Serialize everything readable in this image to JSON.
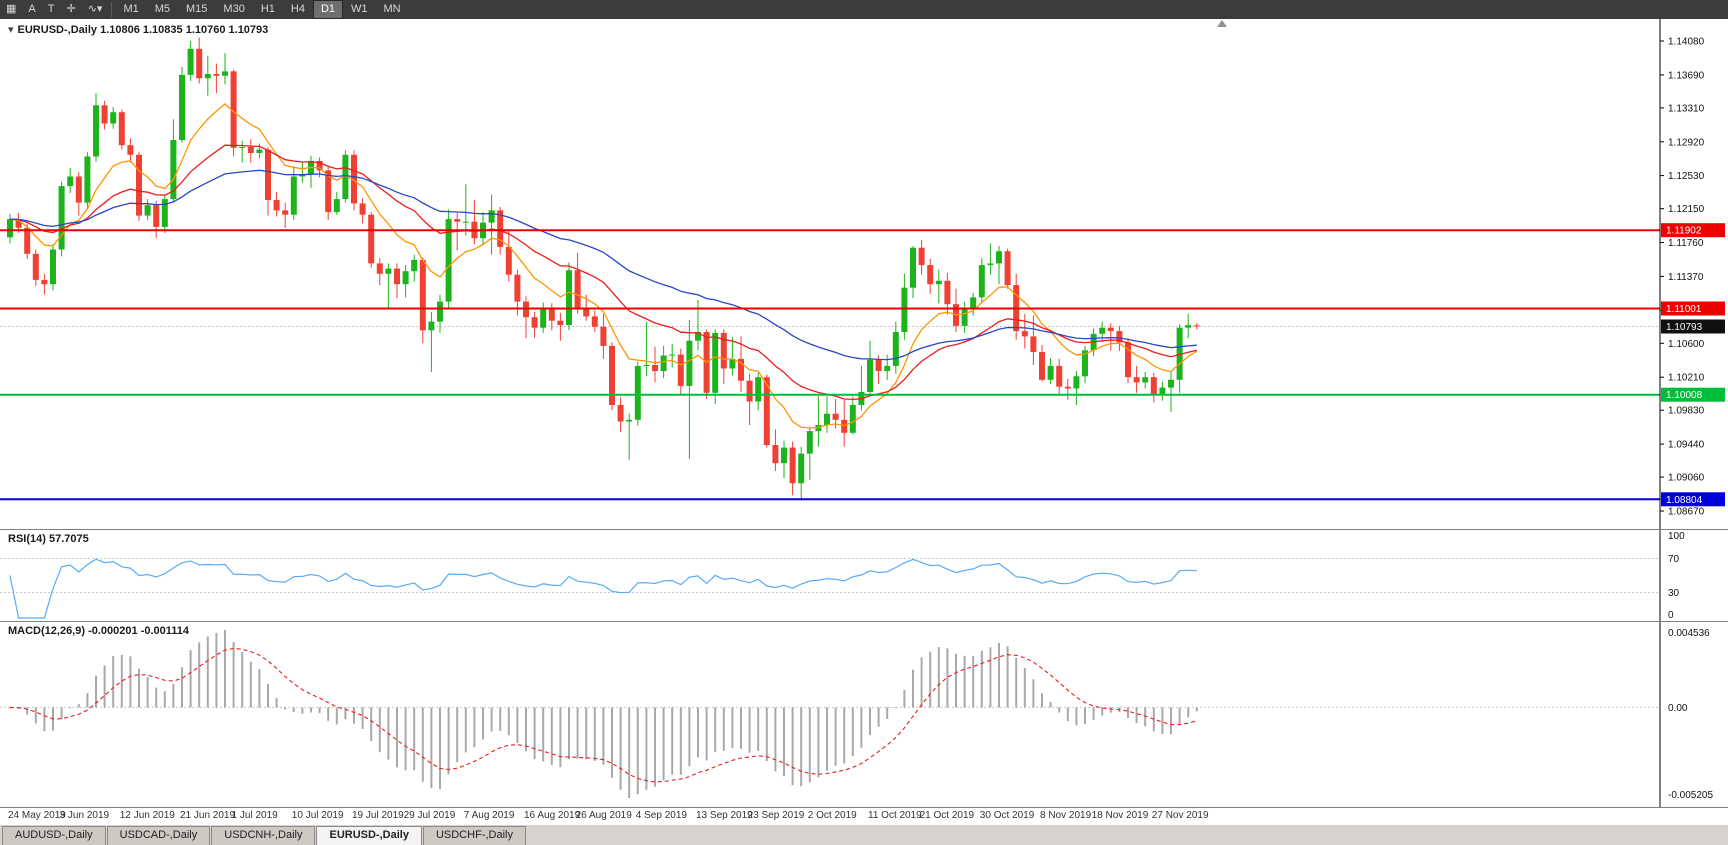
{
  "toolbar": {
    "tools": [
      {
        "glyph": "▦"
      },
      {
        "glyph": "A"
      },
      {
        "glyph": "T"
      },
      {
        "glyph": "✛"
      },
      {
        "glyph": "∿▾"
      }
    ],
    "timeframes": [
      {
        "label": "M1"
      },
      {
        "label": "M5"
      },
      {
        "label": "M15"
      },
      {
        "label": "M30"
      },
      {
        "label": "H1"
      },
      {
        "label": "H4"
      },
      {
        "label": "D1",
        "active": true
      },
      {
        "label": "W1"
      },
      {
        "label": "MN"
      }
    ]
  },
  "chart": {
    "arrow_glyph": "▾",
    "symbol_label": "EURUSD-,Daily",
    "ohlc_label": "1.10806 1.10835 1.10760 1.10793"
  },
  "chart_data": {
    "type": "candlestick",
    "symbol": "EURUSD",
    "timeframe": "Daily",
    "candles": [
      [
        1.1182,
        1.1209,
        1.1175,
        1.1203
      ],
      [
        1.1203,
        1.121,
        1.1187,
        1.1193
      ],
      [
        1.1193,
        1.1197,
        1.1157,
        1.1163
      ],
      [
        1.1163,
        1.1168,
        1.1126,
        1.1133
      ],
      [
        1.1133,
        1.114,
        1.1116,
        1.1128
      ],
      [
        1.1128,
        1.1174,
        1.1121,
        1.1168
      ],
      [
        1.1168,
        1.1246,
        1.116,
        1.1241
      ],
      [
        1.1241,
        1.1262,
        1.1233,
        1.1252
      ],
      [
        1.1252,
        1.1257,
        1.1207,
        1.1222
      ],
      [
        1.1222,
        1.128,
        1.1215,
        1.1275
      ],
      [
        1.1275,
        1.1348,
        1.1269,
        1.1334
      ],
      [
        1.1334,
        1.1339,
        1.1306,
        1.1313
      ],
      [
        1.1313,
        1.1332,
        1.1307,
        1.1326
      ],
      [
        1.1326,
        1.1329,
        1.1283,
        1.1288
      ],
      [
        1.1288,
        1.1296,
        1.1268,
        1.1277
      ],
      [
        1.1277,
        1.128,
        1.1201,
        1.1207
      ],
      [
        1.1207,
        1.1226,
        1.1202,
        1.1219
      ],
      [
        1.1219,
        1.1224,
        1.1181,
        1.1194
      ],
      [
        1.1194,
        1.1231,
        1.1187,
        1.1226
      ],
      [
        1.1226,
        1.1318,
        1.1223,
        1.1294
      ],
      [
        1.1294,
        1.1378,
        1.1291,
        1.1369
      ],
      [
        1.1369,
        1.1408,
        1.1362,
        1.1399
      ],
      [
        1.1399,
        1.1412,
        1.1359,
        1.1365
      ],
      [
        1.1365,
        1.1391,
        1.1345,
        1.137
      ],
      [
        1.137,
        1.1382,
        1.1348,
        1.1368
      ],
      [
        1.1368,
        1.1394,
        1.1358,
        1.1373
      ],
      [
        1.1373,
        1.1375,
        1.1275,
        1.1285
      ],
      [
        1.1285,
        1.1293,
        1.1268,
        1.1286
      ],
      [
        1.1286,
        1.1295,
        1.1268,
        1.1279
      ],
      [
        1.1279,
        1.129,
        1.1273,
        1.1283
      ],
      [
        1.1283,
        1.1286,
        1.1207,
        1.1225
      ],
      [
        1.1225,
        1.1234,
        1.1206,
        1.1213
      ],
      [
        1.1213,
        1.1222,
        1.1193,
        1.1208
      ],
      [
        1.1208,
        1.1264,
        1.1202,
        1.1252
      ],
      [
        1.1252,
        1.1268,
        1.1245,
        1.1254
      ],
      [
        1.1254,
        1.1276,
        1.1239,
        1.127
      ],
      [
        1.127,
        1.1274,
        1.1251,
        1.1259
      ],
      [
        1.1259,
        1.1263,
        1.1202,
        1.1211
      ],
      [
        1.1211,
        1.1234,
        1.1208,
        1.1226
      ],
      [
        1.1226,
        1.1282,
        1.1222,
        1.1277
      ],
      [
        1.1277,
        1.1282,
        1.1213,
        1.1221
      ],
      [
        1.1221,
        1.1227,
        1.1198,
        1.1208
      ],
      [
        1.1208,
        1.1211,
        1.1147,
        1.1152
      ],
      [
        1.1152,
        1.1158,
        1.1127,
        1.114
      ],
      [
        1.114,
        1.1152,
        1.1101,
        1.1146
      ],
      [
        1.1146,
        1.1152,
        1.1112,
        1.1128
      ],
      [
        1.1128,
        1.115,
        1.1113,
        1.1143
      ],
      [
        1.1143,
        1.1162,
        1.1131,
        1.1156
      ],
      [
        1.1156,
        1.1159,
        1.106,
        1.1075
      ],
      [
        1.1075,
        1.1096,
        1.1027,
        1.1085
      ],
      [
        1.1085,
        1.1116,
        1.1072,
        1.1108
      ],
      [
        1.1108,
        1.1214,
        1.1101,
        1.1203
      ],
      [
        1.1203,
        1.121,
        1.1167,
        1.12
      ],
      [
        1.12,
        1.1243,
        1.1184,
        1.12
      ],
      [
        1.12,
        1.1225,
        1.1174,
        1.1181
      ],
      [
        1.1181,
        1.1211,
        1.1173,
        1.1199
      ],
      [
        1.1199,
        1.1231,
        1.1162,
        1.1213
      ],
      [
        1.1213,
        1.1217,
        1.1162,
        1.1171
      ],
      [
        1.1171,
        1.1189,
        1.1131,
        1.1139
      ],
      [
        1.1139,
        1.1145,
        1.1092,
        1.1108
      ],
      [
        1.1108,
        1.1114,
        1.1066,
        1.109
      ],
      [
        1.109,
        1.1096,
        1.1066,
        1.1078
      ],
      [
        1.1078,
        1.1107,
        1.1072,
        1.1099
      ],
      [
        1.1099,
        1.1106,
        1.1075,
        1.1086
      ],
      [
        1.1086,
        1.1095,
        1.1063,
        1.1081
      ],
      [
        1.1081,
        1.1153,
        1.1075,
        1.1144
      ],
      [
        1.1144,
        1.1164,
        1.1094,
        1.1101
      ],
      [
        1.1101,
        1.1116,
        1.1086,
        1.1091
      ],
      [
        1.1091,
        1.1098,
        1.1073,
        1.1079
      ],
      [
        1.1079,
        1.1094,
        1.1042,
        1.1057
      ],
      [
        1.1057,
        1.1061,
        1.0983,
        1.0989
      ],
      [
        1.0989,
        1.0998,
        1.0958,
        1.097
      ],
      [
        1.097,
        1.0979,
        1.0926,
        1.0972
      ],
      [
        1.0972,
        1.1039,
        1.0965,
        1.1034
      ],
      [
        1.1034,
        1.1085,
        1.1022,
        1.1035
      ],
      [
        1.1035,
        1.1056,
        1.1015,
        1.1028
      ],
      [
        1.1028,
        1.1057,
        1.102,
        1.1046
      ],
      [
        1.1046,
        1.1059,
        1.1032,
        1.1047
      ],
      [
        1.1047,
        1.1054,
        1.1001,
        1.1011
      ],
      [
        1.1011,
        1.1087,
        1.0927,
        1.1063
      ],
      [
        1.1063,
        1.111,
        1.1052,
        1.1073
      ],
      [
        1.1073,
        1.1076,
        1.0996,
        1.1003
      ],
      [
        1.1003,
        1.1076,
        1.099,
        1.1072
      ],
      [
        1.1072,
        1.1076,
        1.1013,
        1.1031
      ],
      [
        1.1031,
        1.1067,
        1.1023,
        1.1042
      ],
      [
        1.1042,
        1.1068,
        1.1004,
        1.1017
      ],
      [
        1.1017,
        1.1025,
        1.0966,
        1.0993
      ],
      [
        1.0993,
        1.1026,
        1.0983,
        1.1021
      ],
      [
        1.1021,
        1.1024,
        1.094,
        1.0943
      ],
      [
        1.0943,
        1.0961,
        1.0913,
        1.0922
      ],
      [
        1.0922,
        1.0948,
        1.0905,
        1.094
      ],
      [
        1.094,
        1.0947,
        1.0885,
        1.0899
      ],
      [
        1.0899,
        1.0941,
        1.0879,
        1.0933
      ],
      [
        1.0933,
        1.0964,
        1.0903,
        1.0959
      ],
      [
        1.0959,
        1.0999,
        1.0941,
        1.0966
      ],
      [
        1.0966,
        1.0999,
        1.0957,
        1.0979
      ],
      [
        1.0979,
        1.0996,
        1.0962,
        1.0972
      ],
      [
        1.0972,
        1.0995,
        1.0941,
        1.0957
      ],
      [
        1.0957,
        1.0999,
        1.0955,
        1.0989
      ],
      [
        1.0989,
        1.1034,
        1.0983,
        1.1004
      ],
      [
        1.1004,
        1.1063,
        1.1002,
        1.1041
      ],
      [
        1.1041,
        1.1046,
        1.1013,
        1.1028
      ],
      [
        1.1028,
        1.1047,
        1.1018,
        1.1034
      ],
      [
        1.1034,
        1.1085,
        1.1025,
        1.1073
      ],
      [
        1.1073,
        1.114,
        1.1064,
        1.1124
      ],
      [
        1.1124,
        1.1172,
        1.1112,
        1.117
      ],
      [
        1.117,
        1.1179,
        1.1139,
        1.115
      ],
      [
        1.115,
        1.1157,
        1.1117,
        1.1128
      ],
      [
        1.1128,
        1.1145,
        1.1106,
        1.1132
      ],
      [
        1.1132,
        1.1141,
        1.1093,
        1.1105
      ],
      [
        1.1105,
        1.1123,
        1.1073,
        1.108
      ],
      [
        1.108,
        1.1108,
        1.1072,
        1.1099
      ],
      [
        1.1099,
        1.1118,
        1.1092,
        1.1113
      ],
      [
        1.1113,
        1.1158,
        1.1106,
        1.115
      ],
      [
        1.115,
        1.1175,
        1.1139,
        1.1152
      ],
      [
        1.1152,
        1.1172,
        1.1128,
        1.1166
      ],
      [
        1.1166,
        1.1169,
        1.1123,
        1.1127
      ],
      [
        1.1127,
        1.114,
        1.1064,
        1.1074
      ],
      [
        1.1074,
        1.1094,
        1.1054,
        1.1068
      ],
      [
        1.1068,
        1.1092,
        1.1035,
        1.105
      ],
      [
        1.105,
        1.1058,
        1.1016,
        1.1018
      ],
      [
        1.1018,
        1.1043,
        1.1013,
        1.1034
      ],
      [
        1.1034,
        1.1042,
        1.1002,
        1.101
      ],
      [
        1.101,
        1.1019,
        1.0995,
        1.1008
      ],
      [
        1.1008,
        1.1028,
        1.0989,
        1.1022
      ],
      [
        1.1022,
        1.1057,
        1.1014,
        1.1052
      ],
      [
        1.1052,
        1.1077,
        1.1045,
        1.1071
      ],
      [
        1.1071,
        1.1085,
        1.1062,
        1.1078
      ],
      [
        1.1078,
        1.1083,
        1.1052,
        1.1074
      ],
      [
        1.1074,
        1.108,
        1.1051,
        1.1061
      ],
      [
        1.1061,
        1.1066,
        1.1014,
        1.1021
      ],
      [
        1.1021,
        1.1034,
        1.1003,
        1.1015
      ],
      [
        1.1015,
        1.1027,
        1.1008,
        1.1021
      ],
      [
        1.1021,
        1.1026,
        1.0992,
        1.1001
      ],
      [
        1.1001,
        1.1016,
        1.0994,
        1.1009
      ],
      [
        1.1009,
        1.1028,
        1.0981,
        1.1018
      ],
      [
        1.1018,
        1.1082,
        1.1003,
        1.1078
      ],
      [
        1.1078,
        1.1094,
        1.1066,
        1.1081
      ],
      [
        1.10806,
        1.10835,
        1.1076,
        1.10793
      ]
    ],
    "y_axis": [
      "1.14080",
      "1.13690",
      "1.13310",
      "1.12920",
      "1.12530",
      "1.12150",
      "1.11760",
      "1.11370",
      "1.10980",
      "1.10600",
      "1.10210",
      "1.09830",
      "1.09440",
      "1.09060",
      "1.08670"
    ],
    "levels": [
      {
        "price": 1.11902,
        "label": "1.11902",
        "color": "#ee0000"
      },
      {
        "price": 1.11001,
        "label": "1.11001",
        "color": "#ee0000"
      },
      {
        "price": 1.10008,
        "label": "1.10008",
        "color": "#00bd3c"
      },
      {
        "price": 1.08804,
        "label": "1.08804",
        "color": "#0000dd"
      }
    ],
    "current_price": {
      "value": 1.10793,
      "label": "1.10793",
      "tag_bg": "#101010"
    },
    "moving_averages": [
      {
        "period": 10,
        "color": "#ff9500"
      },
      {
        "period": 25,
        "color": "#ee1c1c"
      },
      {
        "period": 50,
        "color": "#2946c8"
      }
    ],
    "date_labels": [
      [
        0,
        "24 May 2019"
      ],
      [
        6,
        "3 Jun 2019"
      ],
      [
        13,
        "12 Jun 2019"
      ],
      [
        20,
        "21 Jun 2019"
      ],
      [
        26,
        "1 Jul 2019"
      ],
      [
        33,
        "10 Jul 2019"
      ],
      [
        40,
        "19 Jul 2019"
      ],
      [
        46,
        "29 Jul 2019"
      ],
      [
        53,
        "7 Aug 2019"
      ],
      [
        60,
        "16 Aug 2019"
      ],
      [
        66,
        "26 Aug 2019"
      ],
      [
        73,
        "4 Sep 2019"
      ],
      [
        80,
        "13 Sep 2019"
      ],
      [
        86,
        "23 Sep 2019"
      ],
      [
        93,
        "2 Oct 2019"
      ],
      [
        100,
        "11 Oct 2019"
      ],
      [
        106,
        "21 Oct 2019"
      ],
      [
        113,
        "30 Oct 2019"
      ],
      [
        120,
        "8 Nov 2019"
      ],
      [
        126,
        "18 Nov 2019"
      ],
      [
        133,
        "27 Nov 2019"
      ]
    ]
  },
  "rsi": {
    "label": "RSI(14)",
    "value": "57.7075",
    "axis_labels": [
      "100",
      "70",
      "30",
      "0"
    ],
    "line_color": "#58acf8"
  },
  "macd": {
    "label": "MACD(12,26,9)",
    "value_main": "-0.000201",
    "value_signal": "-0.001114",
    "axis_labels": [
      "0.004536",
      "0.00",
      "-0.005205"
    ]
  },
  "tabs": [
    {
      "label": "AUDUSD-,Daily"
    },
    {
      "label": "USDCAD-,Daily"
    },
    {
      "label": "USDCNH-,Daily"
    },
    {
      "label": "EURUSD-,Daily",
      "active": true
    },
    {
      "label": "USDCHF-,Daily"
    }
  ],
  "colors": {
    "candle_up": "#1db31d",
    "candle_down": "#ef4034",
    "macd_bars": "#a8a8a8",
    "macd_signal": "#ee1c1c",
    "axis_text": "#111111"
  }
}
